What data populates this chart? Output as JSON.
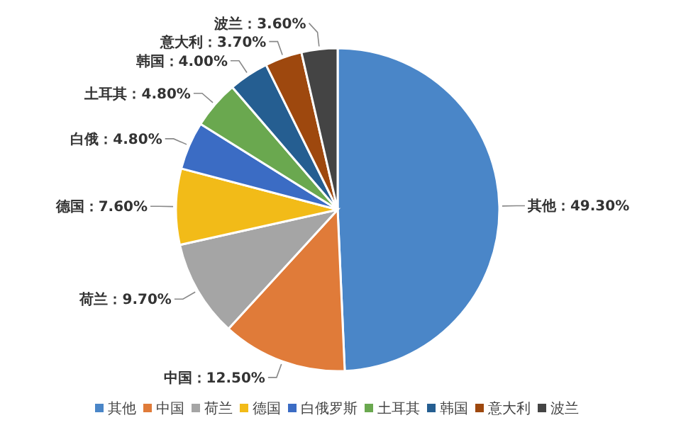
{
  "chart_data": {
    "type": "pie",
    "categories": [
      "其他",
      "中国",
      "荷兰",
      "德国",
      "白俄罗斯",
      "土耳其",
      "韩国",
      "意大利",
      "波兰"
    ],
    "values": [
      49.3,
      12.5,
      9.7,
      7.6,
      4.8,
      4.8,
      4.0,
      3.7,
      3.6
    ],
    "colors": [
      "#4a86c8",
      "#e07b39",
      "#a5a5a5",
      "#f2bb18",
      "#3b6cc4",
      "#6aa84f",
      "#255e91",
      "#9e480e",
      "#444444"
    ],
    "value_labels": [
      "其他：49.30%",
      "中国：12.50%",
      "荷兰：9.70%",
      "德国：7.60%",
      "白俄：4.80%",
      "土耳其：4.80%",
      "韩国：4.00%",
      "意大利：3.70%",
      "波兰：3.60%"
    ],
    "legend": "bottom"
  }
}
